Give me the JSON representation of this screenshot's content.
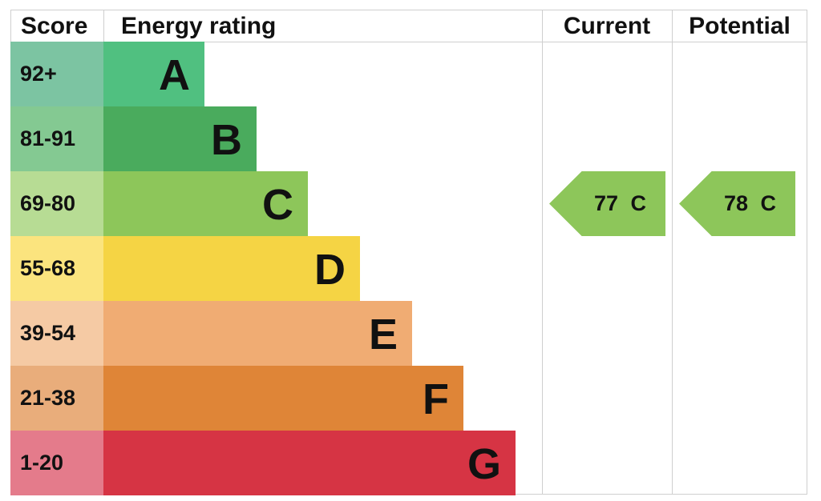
{
  "chart_data": {
    "type": "bar",
    "columns": {
      "score": "Score",
      "rating": "Energy rating",
      "current": "Current",
      "potential": "Potential"
    },
    "bands": [
      {
        "score": "92+",
        "letter": "A",
        "color": "#50c080",
        "score_color": "#7cc4a2"
      },
      {
        "score": "81-91",
        "letter": "B",
        "color": "#4aab5d",
        "score_color": "#84c992"
      },
      {
        "score": "69-80",
        "letter": "C",
        "color": "#8dc65a",
        "score_color": "#b7dc94"
      },
      {
        "score": "55-68",
        "letter": "D",
        "color": "#f5d444",
        "score_color": "#fbe47e"
      },
      {
        "score": "39-54",
        "letter": "E",
        "color": "#f0ac73",
        "score_color": "#f5caa4"
      },
      {
        "score": "21-38",
        "letter": "F",
        "color": "#df8537",
        "score_color": "#e9ad7b"
      },
      {
        "score": "1-20",
        "letter": "G",
        "color": "#d63444",
        "score_color": "#e47b8b"
      }
    ],
    "current": {
      "value": 77,
      "letter": "C",
      "label": "77 C",
      "color": "#8dc65a"
    },
    "potential": {
      "value": 78,
      "letter": "C",
      "label": "78 C",
      "color": "#8dc65a"
    }
  }
}
